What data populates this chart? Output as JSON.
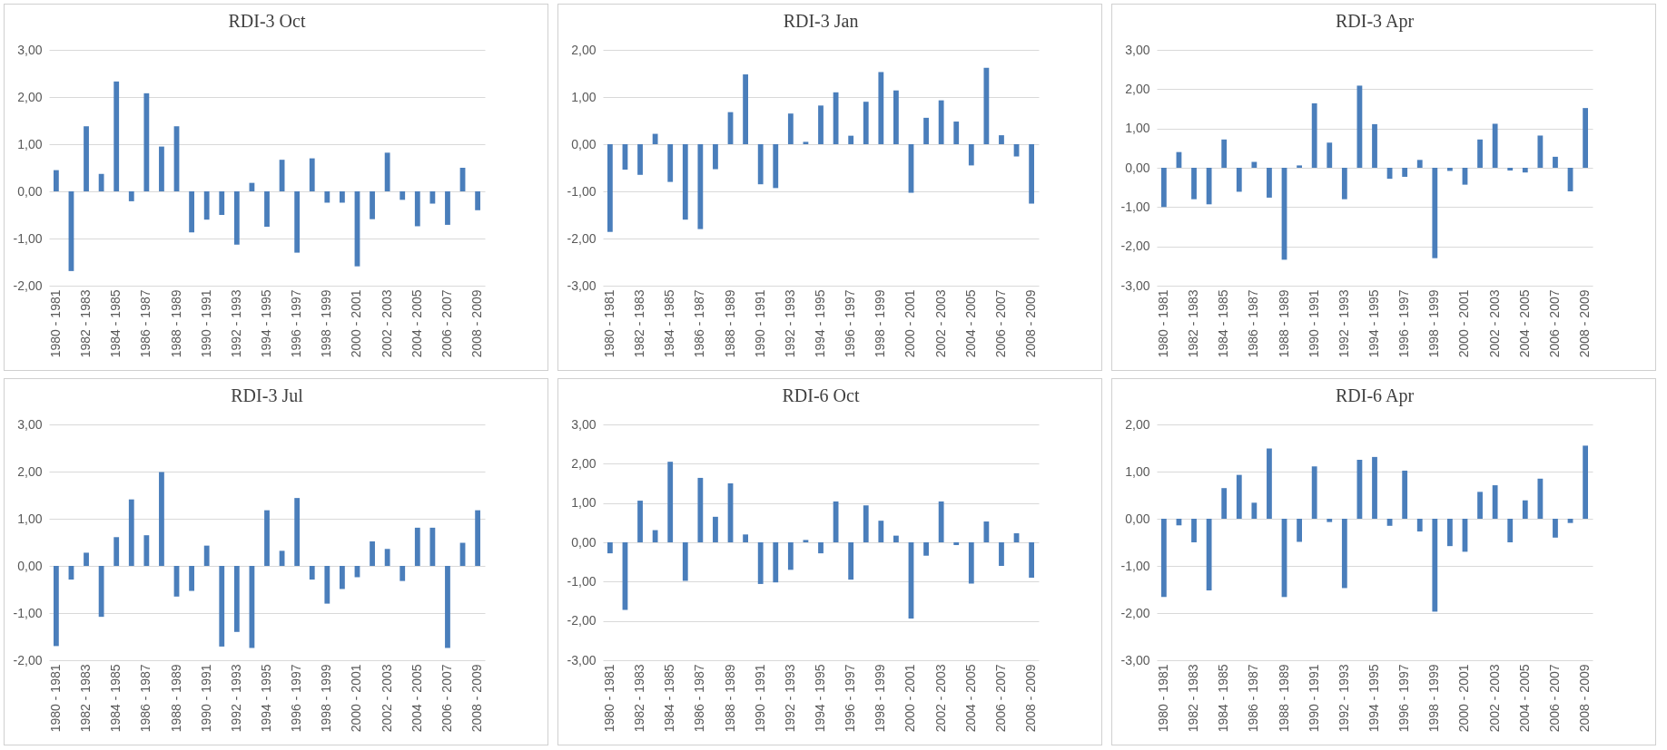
{
  "chart_data": [
    {
      "type": "bar",
      "title": "RDI-3 Oct",
      "color": "#4a7ebb",
      "grid": "y",
      "ylim": [
        -2,
        3
      ],
      "yticks": [
        {
          "value": -2,
          "label": "-2,00"
        },
        {
          "value": -1,
          "label": "-1,00"
        },
        {
          "value": 0,
          "label": "0,00"
        },
        {
          "value": 1,
          "label": "1,00"
        },
        {
          "value": 2,
          "label": "2,00"
        },
        {
          "value": 3,
          "label": "3,00"
        }
      ],
      "categories": [
        "1980 - 1981",
        null,
        "1982 - 1983",
        null,
        "1984 - 1985",
        null,
        "1986 - 1987",
        null,
        "1988 - 1989",
        null,
        "1990 - 1991",
        null,
        "1992 - 1993",
        null,
        "1994 - 1995",
        null,
        "1996 - 1997",
        null,
        "1998 - 1999",
        null,
        "2000 - 2001",
        null,
        "2002 - 2003",
        null,
        "2004 - 2005",
        null,
        "2006 - 2007",
        null,
        "2008 - 2009"
      ],
      "values": [
        0.45,
        -1.69,
        1.38,
        0.37,
        2.33,
        -0.21,
        2.08,
        0.95,
        1.38,
        -0.87,
        -0.6,
        -0.5,
        -1.13,
        0.18,
        -0.75,
        0.67,
        -1.3,
        0.7,
        -0.24,
        -0.24,
        -1.59,
        -0.59,
        0.82,
        -0.18,
        -0.74,
        -0.26,
        -0.71,
        0.5,
        -0.4
      ]
    },
    {
      "type": "bar",
      "title": "RDI-3 Jan",
      "color": "#4a7ebb",
      "grid": "y",
      "ylim": [
        -3,
        2
      ],
      "yticks": [
        {
          "value": -3,
          "label": "-3,00"
        },
        {
          "value": -2,
          "label": "-2,00"
        },
        {
          "value": -1,
          "label": "-1,00"
        },
        {
          "value": 0,
          "label": "0,00"
        },
        {
          "value": 1,
          "label": "1,00"
        },
        {
          "value": 2,
          "label": "2,00"
        }
      ],
      "categories": [
        "1980 - 1981",
        null,
        "1982 - 1983",
        null,
        "1984 - 1985",
        null,
        "1986 - 1987",
        null,
        "1988 - 1989",
        null,
        "1990 - 1991",
        null,
        "1992 - 1993",
        null,
        "1994 - 1995",
        null,
        "1996 - 1997",
        null,
        "1998 - 1999",
        null,
        "2000 - 2001",
        null,
        "2002 - 2003",
        null,
        "2004 - 2005",
        null,
        "2006 - 2007",
        null,
        "2008 - 2009"
      ],
      "values": [
        -1.86,
        -0.54,
        -0.65,
        0.22,
        -0.8,
        -1.6,
        -1.8,
        -0.53,
        0.68,
        1.48,
        -0.85,
        -0.93,
        0.65,
        0.05,
        0.82,
        1.1,
        0.18,
        0.9,
        1.53,
        1.14,
        -1.03,
        0.56,
        0.93,
        0.48,
        -0.45,
        1.62,
        0.19,
        -0.26,
        -1.26
      ]
    },
    {
      "type": "bar",
      "title": "RDI-3 Apr",
      "color": "#4a7ebb",
      "grid": "y",
      "ylim": [
        -3,
        3
      ],
      "yticks": [
        {
          "value": -3,
          "label": "-3,00"
        },
        {
          "value": -2,
          "label": "-2,00"
        },
        {
          "value": -1,
          "label": "-1,00"
        },
        {
          "value": 0,
          "label": "0,00"
        },
        {
          "value": 1,
          "label": "1,00"
        },
        {
          "value": 2,
          "label": "2,00"
        },
        {
          "value": 3,
          "label": "3,00"
        }
      ],
      "categories": [
        "1980 - 1981",
        null,
        "1982 - 1983",
        null,
        "1984 - 1985",
        null,
        "1986 - 1987",
        null,
        "1988 - 1989",
        null,
        "1990 - 1991",
        null,
        "1992 - 1993",
        null,
        "1994 - 1995",
        null,
        "1996 - 1997",
        null,
        "1998 - 1999",
        null,
        "2000 - 2001",
        null,
        "2002 - 2003",
        null,
        "2004 - 2005",
        null,
        "2006 - 2007",
        null,
        "2008 - 2009"
      ],
      "values": [
        -1.0,
        0.4,
        -0.8,
        -0.93,
        0.72,
        -0.61,
        0.15,
        -0.76,
        -2.34,
        0.06,
        1.64,
        0.64,
        -0.8,
        2.09,
        1.11,
        -0.28,
        -0.23,
        0.2,
        -2.3,
        -0.08,
        -0.43,
        0.72,
        1.12,
        -0.07,
        -0.12,
        0.82,
        0.28,
        -0.6,
        1.52
      ]
    },
    {
      "type": "bar",
      "title": "RDI-3 Jul",
      "color": "#4a7ebb",
      "grid": "y",
      "ylim": [
        -2,
        3
      ],
      "yticks": [
        {
          "value": -2,
          "label": "-2,00"
        },
        {
          "value": -1,
          "label": "-1,00"
        },
        {
          "value": 0,
          "label": "0,00"
        },
        {
          "value": 1,
          "label": "1,00"
        },
        {
          "value": 2,
          "label": "2,00"
        },
        {
          "value": 3,
          "label": "3,00"
        }
      ],
      "categories": [
        "1980 - 1981",
        null,
        "1982 - 1983",
        null,
        "1984 - 1985",
        null,
        "1986 - 1987",
        null,
        "1988 - 1989",
        null,
        "1990 - 1991",
        null,
        "1992 - 1993",
        null,
        "1994 - 1995",
        null,
        "1996 - 1997",
        null,
        "1998 - 1999",
        null,
        "2000 - 2001",
        null,
        "2002 - 2003",
        null,
        "2004 - 2005",
        null,
        "2006 - 2007",
        null,
        "2008 - 2009"
      ],
      "values": [
        -1.7,
        -0.29,
        0.28,
        -1.08,
        0.61,
        1.41,
        0.65,
        1.99,
        -0.65,
        -0.53,
        0.43,
        -1.71,
        -1.4,
        -1.74,
        1.18,
        0.32,
        1.44,
        -0.29,
        -0.8,
        -0.49,
        -0.24,
        0.52,
        0.36,
        -0.32,
        0.81,
        0.81,
        -1.74,
        0.49,
        1.18
      ]
    },
    {
      "type": "bar",
      "title": "RDI-6 Oct",
      "color": "#4a7ebb",
      "grid": "y",
      "ylim": [
        -3,
        3
      ],
      "yticks": [
        {
          "value": -3,
          "label": "-3,00"
        },
        {
          "value": -2,
          "label": "-2,00"
        },
        {
          "value": -1,
          "label": "-1,00"
        },
        {
          "value": 0,
          "label": "0,00"
        },
        {
          "value": 1,
          "label": "1,00"
        },
        {
          "value": 2,
          "label": "2,00"
        },
        {
          "value": 3,
          "label": "3,00"
        }
      ],
      "categories": [
        "1980 - 1981",
        null,
        "1982 - 1983",
        null,
        "1984 - 1985",
        null,
        "1986 - 1987",
        null,
        "1988 - 1989",
        null,
        "1990 - 1991",
        null,
        "1992 - 1993",
        null,
        "1994 - 1995",
        null,
        "1996 - 1997",
        null,
        "1998 - 1999",
        null,
        "2000 - 2001",
        null,
        "2002 - 2003",
        null,
        "2004 - 2005",
        null,
        "2006 - 2007",
        null,
        "2008 - 2009"
      ],
      "values": [
        -0.28,
        -1.72,
        1.06,
        0.31,
        2.05,
        -0.98,
        1.64,
        0.65,
        1.5,
        0.2,
        -1.06,
        -1.02,
        -0.7,
        0.06,
        -0.28,
        1.04,
        -0.95,
        0.94,
        0.55,
        0.17,
        -1.94,
        -0.34,
        1.04,
        -0.07,
        -1.05,
        0.53,
        -0.6,
        0.23,
        -0.9
      ]
    },
    {
      "type": "bar",
      "title": "RDI-6 Apr",
      "color": "#4a7ebb",
      "grid": "y",
      "ylim": [
        -3,
        2
      ],
      "yticks": [
        {
          "value": -3,
          "label": "-3,00"
        },
        {
          "value": -2,
          "label": "-2,00"
        },
        {
          "value": -1,
          "label": "-1,00"
        },
        {
          "value": 0,
          "label": "0,00"
        },
        {
          "value": 1,
          "label": "1,00"
        },
        {
          "value": 2,
          "label": "2,00"
        }
      ],
      "categories": [
        "1980 - 1981",
        null,
        "1982 - 1983",
        null,
        "1984 - 1985",
        null,
        "1986 - 1987",
        null,
        "1988 - 1989",
        null,
        "1990 - 1991",
        null,
        "1992 - 1993",
        null,
        "1994 - 1995",
        null,
        "1996 - 1997",
        null,
        "1998 - 1999",
        null,
        "2000 - 2001",
        null,
        "2002 - 2003",
        null,
        "2004 - 2005",
        null,
        "2006 - 2007",
        null,
        "2008 - 2009"
      ],
      "values": [
        -1.66,
        -0.14,
        -0.5,
        -1.52,
        0.65,
        0.93,
        0.34,
        1.49,
        -1.66,
        -0.49,
        1.11,
        -0.07,
        -1.47,
        1.25,
        1.31,
        -0.15,
        1.02,
        -0.27,
        -1.97,
        -0.58,
        -0.7,
        0.57,
        0.71,
        -0.5,
        0.39,
        0.85,
        -0.4,
        -0.09,
        1.55
      ]
    }
  ]
}
